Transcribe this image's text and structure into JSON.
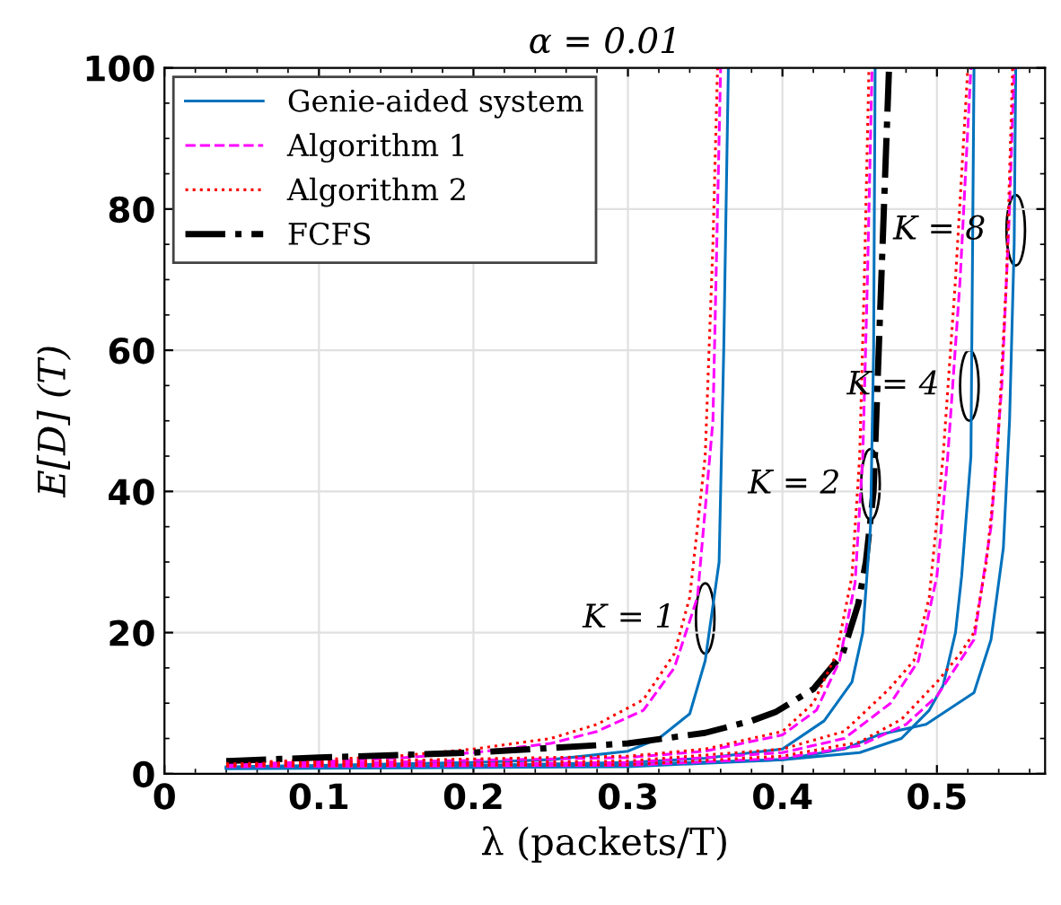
{
  "chart_data": {
    "type": "line",
    "title": "α = 0.01",
    "xlabel": "λ (packets/T)",
    "ylabel": "E[D] (T)",
    "xlim": [
      0,
      0.57
    ],
    "ylim": [
      0,
      100
    ],
    "xticks": [
      0,
      0.1,
      0.2,
      0.3,
      0.4,
      0.5
    ],
    "yticks": [
      0,
      20,
      40,
      60,
      80,
      100
    ],
    "grid": true,
    "legend": "top left",
    "series": [
      {
        "name": "Genie-aided system",
        "color": "#0072bd",
        "line_style": "solid",
        "x": [
          0.04,
          0.1,
          0.2,
          0.25,
          0.3,
          0.32,
          0.34,
          0.35,
          0.359,
          0.362,
          0.365
        ],
        "values": [
          1,
          1.2,
          1.6,
          2,
          3.2,
          5,
          8.5,
          16,
          30,
          60,
          100
        ]
      },
      {
        "name": "Algorithm 1",
        "color": "#ff00ff",
        "line_style": "dashed",
        "x": [
          0.04,
          0.1,
          0.15,
          0.2,
          0.25,
          0.28,
          0.31,
          0.33,
          0.345,
          0.355,
          0.36
        ],
        "values": [
          1.3,
          1.7,
          2.2,
          3,
          4.3,
          6,
          9,
          15,
          25,
          50,
          100
        ]
      },
      {
        "name": "Algorithm 2",
        "color": "#ff0000",
        "line_style": "dotted",
        "x": [
          0.04,
          0.1,
          0.15,
          0.2,
          0.25,
          0.28,
          0.31,
          0.33,
          0.34,
          0.35,
          0.355,
          0.358
        ],
        "values": [
          1.5,
          2,
          2.5,
          3.5,
          5,
          7,
          10.5,
          17,
          25,
          45,
          75,
          100
        ]
      },
      {
        "name": "FCFS",
        "color": "#000000",
        "line_style": "dashdot",
        "x": [
          0.04,
          0.1,
          0.2,
          0.3,
          0.35,
          0.38,
          0.396,
          0.42,
          0.439,
          0.449,
          0.454,
          0.459,
          0.464,
          0.469
        ],
        "values": [
          1.8,
          2.3,
          3,
          4.3,
          5.8,
          7.5,
          8.8,
          12,
          17,
          24,
          30,
          40,
          70,
          100
        ]
      },
      {
        "color": "#0072bd",
        "line_style": "solid",
        "x": [
          0.04,
          0.2,
          0.3,
          0.35,
          0.4,
          0.427,
          0.445,
          0.452,
          0.457,
          0.459,
          0.46
        ],
        "values": [
          0.9,
          1.2,
          1.6,
          2.2,
          3.5,
          7.5,
          13,
          20,
          35,
          60,
          100
        ]
      },
      {
        "color": "#ff00ff",
        "line_style": "dashed",
        "x": [
          0.04,
          0.2,
          0.3,
          0.35,
          0.4,
          0.422,
          0.437,
          0.447,
          0.452,
          0.455,
          0.458
        ],
        "values": [
          1.2,
          1.9,
          2.3,
          3.2,
          5.5,
          9,
          16,
          27,
          45,
          70,
          100
        ]
      },
      {
        "color": "#ff0000",
        "line_style": "dotted",
        "x": [
          0.04,
          0.2,
          0.3,
          0.35,
          0.4,
          0.42,
          0.435,
          0.445,
          0.45,
          0.453,
          0.456
        ],
        "values": [
          1.4,
          2.1,
          2.5,
          3.5,
          6,
          10,
          17,
          28,
          45,
          70,
          100
        ]
      },
      {
        "color": "#0072bd",
        "line_style": "solid",
        "x": [
          0.04,
          0.3,
          0.4,
          0.45,
          0.477,
          0.495,
          0.504,
          0.512,
          0.516,
          0.522,
          0.524
        ],
        "values": [
          0.8,
          1.3,
          2,
          3,
          5,
          9,
          12.5,
          20,
          28,
          45,
          100
        ]
      },
      {
        "color": "#ff00ff",
        "line_style": "dashed",
        "x": [
          0.04,
          0.3,
          0.4,
          0.44,
          0.47,
          0.488,
          0.5,
          0.507,
          0.515,
          0.522
        ],
        "values": [
          1.1,
          1.6,
          3,
          5,
          10,
          16,
          28,
          45,
          70,
          100
        ]
      },
      {
        "color": "#ff0000",
        "line_style": "dotted",
        "x": [
          0.04,
          0.3,
          0.4,
          0.44,
          0.469,
          0.485,
          0.495,
          0.504,
          0.512,
          0.52
        ],
        "values": [
          1.2,
          1.8,
          3.5,
          6,
          12,
          16,
          25,
          45,
          70,
          100
        ]
      },
      {
        "color": "#0072bd",
        "line_style": "solid",
        "x": [
          0.04,
          0.3,
          0.4,
          0.44,
          0.462,
          0.493,
          0.524,
          0.535,
          0.543,
          0.547,
          0.55,
          0.551
        ],
        "values": [
          0.7,
          1,
          2,
          3.5,
          5.5,
          7,
          11.5,
          19,
          32,
          50,
          75,
          100
        ]
      },
      {
        "color": "#ff00ff",
        "line_style": "dashed",
        "x": [
          0.04,
          0.3,
          0.4,
          0.45,
          0.48,
          0.5,
          0.524,
          0.535,
          0.542,
          0.547,
          0.55
        ],
        "values": [
          1,
          1.2,
          2.2,
          4,
          7,
          11,
          19,
          35,
          55,
          80,
          100
        ]
      },
      {
        "color": "#ff0000",
        "line_style": "dotted",
        "x": [
          0.04,
          0.3,
          0.4,
          0.45,
          0.477,
          0.5,
          0.515,
          0.524,
          0.532,
          0.539,
          0.545,
          0.549
        ],
        "values": [
          1.1,
          1.3,
          2.5,
          4.5,
          7.7,
          13,
          17,
          20,
          30,
          45,
          70,
          100
        ]
      }
    ],
    "annotations": [
      {
        "text": "K = 1",
        "x": 0.35,
        "y": 22
      },
      {
        "text": "K = 2",
        "x": 0.457,
        "y": 41
      },
      {
        "text": "K = 4",
        "x": 0.521,
        "y": 55
      },
      {
        "text": "K = 8",
        "x": 0.551,
        "y": 77
      }
    ]
  }
}
